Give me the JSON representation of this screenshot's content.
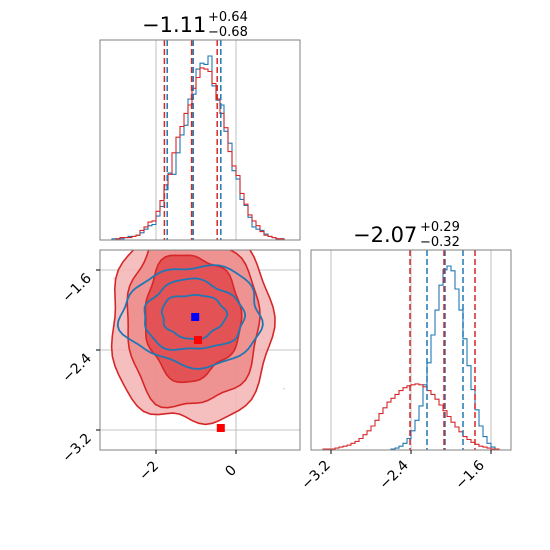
{
  "chart_data": [
    {
      "type": "histogram",
      "panel": "top-left",
      "title": {
        "main": "−1.11",
        "sup": "+0.64",
        "sub": "−0.68"
      },
      "xlim": [
        -3.4,
        1.6
      ],
      "x_ticks": [
        -2,
        0
      ],
      "grid": true,
      "bins": {
        "start": -3.4,
        "width": 0.1
      },
      "series": [
        {
          "name": "",
          "color": "#1f77b4",
          "quantiles": [
            -1.72,
            -1.07,
            -0.38
          ],
          "counts": [
            0,
            0,
            0,
            1,
            1,
            1,
            2,
            3,
            3,
            4,
            6,
            9,
            12,
            13,
            20,
            28,
            42,
            56,
            55,
            73,
            88,
            96,
            118,
            122,
            143,
            148,
            147,
            154,
            129,
            117,
            113,
            91,
            81,
            58,
            51,
            34,
            29,
            19,
            11,
            9,
            8,
            5,
            3,
            2,
            1,
            1,
            0,
            0,
            0,
            0
          ]
        },
        {
          "name": "",
          "color": "#d62728",
          "quantiles": [
            -1.79,
            -1.11,
            -0.47
          ],
          "counts": [
            0,
            0,
            0,
            0,
            1,
            2,
            2,
            2,
            3,
            4,
            8,
            11,
            15,
            16,
            24,
            33,
            46,
            55,
            73,
            86,
            95,
            106,
            113,
            127,
            136,
            144,
            143,
            141,
            131,
            118,
            106,
            94,
            74,
            62,
            54,
            39,
            30,
            21,
            16,
            12,
            7,
            4,
            3,
            2,
            1,
            1,
            0,
            0,
            0,
            0
          ]
        }
      ]
    },
    {
      "type": "histogram",
      "panel": "bottom-right",
      "title": {
        "main": "−2.07",
        "sup": "+0.29",
        "sub": "−0.32"
      },
      "xlim": [
        -3.4,
        -1.4
      ],
      "x_ticks": [
        -3.2,
        -2.4,
        -1.6
      ],
      "x_tick_labels": [
        "−3.2",
        "−2.4",
        "−1.6"
      ],
      "grid": true,
      "bins": {
        "start": -3.4,
        "width": 0.04
      },
      "series": [
        {
          "name": "",
          "color": "#1f77b4",
          "quantiles": [
            -2.24,
            -2.06,
            -1.88
          ],
          "counts": [
            0,
            0,
            0,
            0,
            0,
            0,
            0,
            0,
            0,
            0,
            0,
            0,
            0,
            0,
            0,
            0,
            0,
            0,
            0,
            0,
            1,
            2,
            4,
            7,
            12,
            20,
            31,
            46,
            68,
            91,
            120,
            146,
            172,
            188,
            192,
            187,
            168,
            146,
            116,
            88,
            63,
            42,
            25,
            14,
            7,
            3,
            1,
            0,
            0,
            0
          ]
        },
        {
          "name": "",
          "color": "#d62728",
          "quantiles": [
            -2.41,
            -2.07,
            -1.76
          ],
          "counts": [
            0,
            0,
            0,
            1,
            1,
            1,
            2,
            3,
            4,
            5,
            7,
            9,
            12,
            16,
            20,
            25,
            31,
            38,
            44,
            50,
            54,
            58,
            62,
            65,
            67,
            68,
            69,
            68,
            66,
            62,
            58,
            53,
            47,
            41,
            35,
            29,
            24,
            19,
            14,
            11,
            8,
            6,
            4,
            3,
            2,
            1,
            1,
            0,
            0,
            0
          ]
        }
      ]
    },
    {
      "type": "contour",
      "panel": "bottom-left",
      "xlim": [
        -3.4,
        1.6
      ],
      "ylim": [
        -3.4,
        -1.4
      ],
      "x_ticks": [
        -2,
        0
      ],
      "y_ticks": [
        -3.2,
        -2.4,
        -1.6
      ],
      "y_tick_labels": [
        "−3.2",
        "−2.4",
        "−1.6"
      ],
      "x_tick_labels": [
        "−2",
        "0"
      ],
      "grid": true,
      "series": [
        {
          "name": "",
          "color": "#d62728",
          "center": [
            -1.11,
            -2.07
          ],
          "levels": [
            [
              1.2,
              0.63
            ],
            [
              1.65,
              0.92
            ],
            [
              2.0,
              1.1
            ]
          ],
          "marker": [
            -0.95,
            -2.3
          ]
        },
        {
          "name": "",
          "color": "#1f77b4",
          "center": [
            -1.07,
            -2.06
          ],
          "levels": [
            [
              0.8,
              0.22
            ],
            [
              1.25,
              0.35
            ],
            [
              1.75,
              0.5
            ]
          ],
          "marker": [
            -1.02,
            -2.07
          ]
        }
      ],
      "extra_markers": [
        {
          "x": -0.38,
          "y": -3.18,
          "color": "#ff0000"
        }
      ]
    }
  ]
}
